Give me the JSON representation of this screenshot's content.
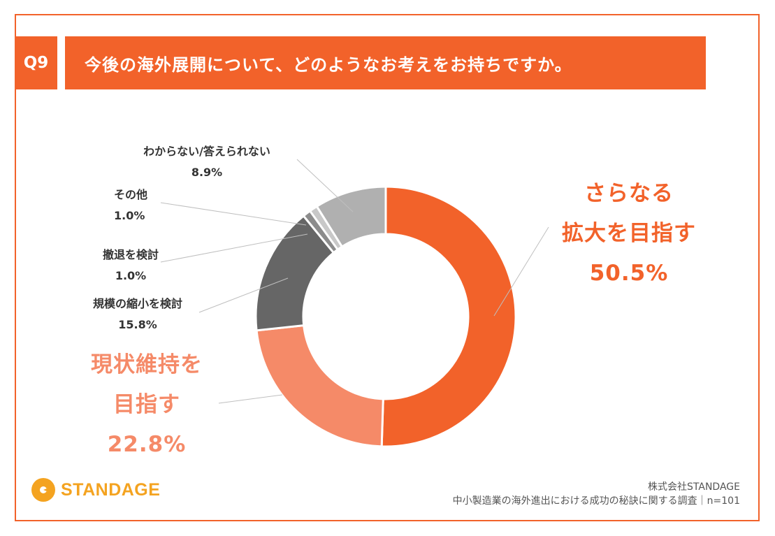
{
  "question": {
    "number": "Q9",
    "text": "今後の海外展開について、どのようなお考えをお持ちですか。"
  },
  "chart_data": {
    "type": "pie",
    "donut": true,
    "slices": [
      {
        "label": "さらなる拡大を目指す",
        "value": 50.5,
        "color": "#f2622a"
      },
      {
        "label": "現状維持を目指す",
        "value": 22.8,
        "color": "#f58a68"
      },
      {
        "label": "規模の縮小を検討",
        "value": 15.8,
        "color": "#666666"
      },
      {
        "label": "撤退を検討",
        "value": 1.0,
        "color": "#8c8c8c"
      },
      {
        "label": "その他",
        "value": 1.0,
        "color": "#c8c8c8"
      },
      {
        "label": "わからない/答えられない",
        "value": 8.9,
        "color": "#b0b0b0"
      }
    ]
  },
  "labels": {
    "wakaranai": {
      "name": "わからない/答えられない",
      "pct": "8.9%"
    },
    "sonota": {
      "name": "その他",
      "pct": "1.0%"
    },
    "tettai": {
      "name": "撤退を検討",
      "pct": "1.0%"
    },
    "shukusho": {
      "name": "規模の縮小を検討",
      "pct": "15.8%"
    },
    "kakudai": {
      "line1": "さらなる",
      "line2": "拡大を目指す",
      "pct": "50.5%"
    },
    "genjo": {
      "line1": "現状維持を",
      "line2": "目指す",
      "pct": "22.8%"
    }
  },
  "footer": {
    "company": "株式会社STANDAGE",
    "survey": "中小製造業の海外進出における成功の秘訣に関する調査｜n=101",
    "logo_text": "STANDAGE"
  }
}
